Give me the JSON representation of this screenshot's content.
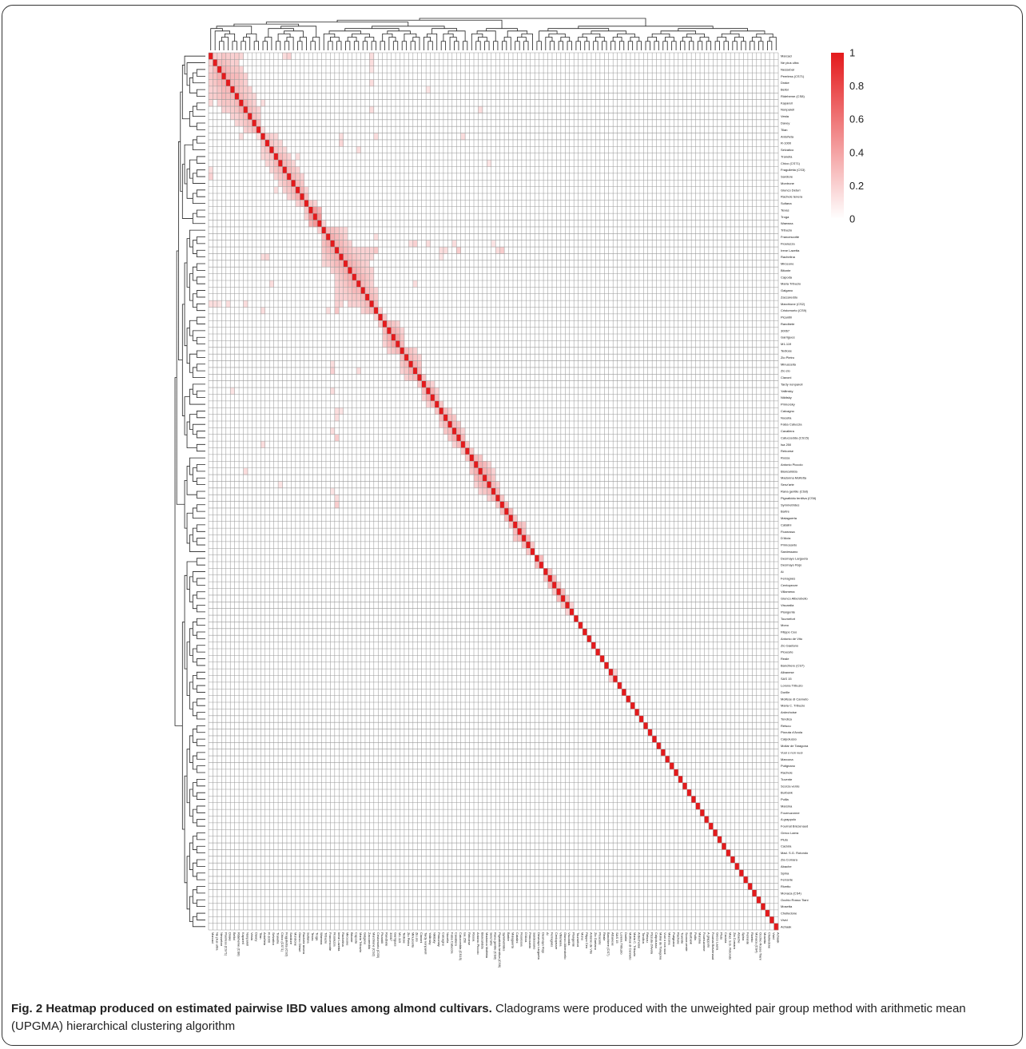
{
  "chart_data": {
    "type": "heatmap",
    "title": "",
    "value_label": "pairwise IBD",
    "labels": [
      "Marcaci",
      "Ne plus ultra",
      "Nessebar",
      "Peerless (CS71)",
      "Drake",
      "Belloi",
      "Rideheme (CS8)",
      "Kapareil",
      "Nonpareil",
      "Vesta",
      "Davey",
      "Tilan",
      "Antoñeta",
      "R-1000",
      "Selvatico",
      "Tranella",
      "Chico (CS71)",
      "Fragulletta (CS3)",
      "Sardiore",
      "Montrone",
      "Giunco Deturi",
      "Rachele tenera",
      "Sultana",
      "Texas",
      "Troga",
      "Waewna",
      "Tribuzio",
      "Francescotte",
      "Fioarazza",
      "Irene Lazetta",
      "Rachelina",
      "Mirceone",
      "Bitonte",
      "Capoda",
      "Maria Tribuzio",
      "Galgano",
      "Zaccareddu",
      "Marchione (CS2)",
      "Cristomorto (CS9)",
      "Picantili",
      "Randbete",
      "30067",
      "Garrigues",
      "M1-119",
      "Tediose",
      "Zio Pietro",
      "Minuscella",
      "Zio zio",
      "Ciavoni",
      "Tardy nonpareil",
      "Yallinsky",
      "Nikitsky",
      "Primorsky",
      "Calcagno",
      "Nocella",
      "Falsa Catuccia",
      "Cavaliera",
      "Catuccedda (CS15)",
      "Isa 250",
      "Reboese",
      "Rossa",
      "Antonio Piccolo",
      "Bianculidda",
      "Madonna Molfetta",
      "Senz'arte",
      "Rana gentile (CS8)",
      "Pignatiddu tenitiva (CS6)",
      "Symmetrides",
      "Bartre",
      "Malaguerta",
      "Catalini",
      "Fioarossa",
      "D'Alcia",
      "Primosanto",
      "Sardessano",
      "Desmayo Largueta",
      "Desmayo Rojo",
      "Ai",
      "Ferragnès",
      "Centopezze",
      "Villamena",
      "Giunco Alberobello",
      "Viscardia",
      "Piangente",
      "Tournefort",
      "Mono",
      "Filippo Ceo",
      "Antonio de Vito",
      "Zio Gaetano",
      "Pioucete",
      "Reale",
      "Banchiere (CS7)",
      "Albanese",
      "SAS 15",
      "Lorena Tribuzio",
      "Dorille",
      "Molfese di Canneto",
      "Maria C. Tribuzio",
      "Ardechoise",
      "Tondica",
      "Retsou",
      "Pizzuta d'Avola",
      "Calpolusso",
      "Mollar de Taragona",
      "Vuoi o non vuoi",
      "Marcona",
      "Putignano",
      "Rachele",
      "Tuvente",
      "Scorza verde",
      "Burbank",
      "Puilla",
      "Marsina",
      "Fournuzonne",
      "A grappolo",
      "Fournat Brézenaud",
      "Greco Laera",
      "Pluto",
      "Caciola",
      "Mad. S.G. Rotondo",
      "Zia Comara",
      "Abache",
      "Spina",
      "Ferrante",
      "Rivetto",
      "Monaca (CS4)",
      "Occhio Rosso Tiani",
      "Mosetta",
      "Chelledone",
      "Vivid",
      "Achaak"
    ],
    "scale": {
      "min": 0,
      "max": 1,
      "ticks": [
        "1",
        "0.8",
        "0.6",
        "0.4",
        "0.2",
        "0"
      ],
      "color_low": "#ffffff",
      "color_high": "#e41a1c"
    },
    "diagonal": 1,
    "values_upper": [
      [
        0,
        1,
        0.22
      ],
      [
        0,
        2,
        0.2
      ],
      [
        0,
        3,
        0.25
      ],
      [
        0,
        4,
        0.22
      ],
      [
        0,
        5,
        0.2
      ],
      [
        0,
        6,
        0.22
      ],
      [
        0,
        7,
        0.18
      ],
      [
        0,
        17,
        0.15
      ],
      [
        0,
        18,
        0.2
      ],
      [
        0,
        37,
        0.15
      ],
      [
        1,
        2,
        0.3
      ],
      [
        1,
        3,
        0.28
      ],
      [
        1,
        4,
        0.25
      ],
      [
        1,
        5,
        0.2
      ],
      [
        1,
        6,
        0.22
      ],
      [
        1,
        37,
        0.15
      ],
      [
        2,
        3,
        0.35
      ],
      [
        2,
        4,
        0.3
      ],
      [
        2,
        5,
        0.25
      ],
      [
        2,
        6,
        0.25
      ],
      [
        2,
        7,
        0.2
      ],
      [
        2,
        37,
        0.12
      ],
      [
        3,
        4,
        0.35
      ],
      [
        3,
        5,
        0.3
      ],
      [
        3,
        6,
        0.3
      ],
      [
        3,
        7,
        0.25
      ],
      [
        3,
        8,
        0.2
      ],
      [
        4,
        5,
        0.3
      ],
      [
        4,
        6,
        0.28
      ],
      [
        4,
        7,
        0.25
      ],
      [
        4,
        8,
        0.2
      ],
      [
        4,
        37,
        0.15
      ],
      [
        5,
        6,
        0.3
      ],
      [
        5,
        7,
        0.25
      ],
      [
        5,
        8,
        0.22
      ],
      [
        5,
        9,
        0.2
      ],
      [
        5,
        50,
        0.12
      ],
      [
        6,
        7,
        0.3
      ],
      [
        6,
        8,
        0.25
      ],
      [
        6,
        9,
        0.2
      ],
      [
        6,
        10,
        0.18
      ],
      [
        7,
        8,
        0.35
      ],
      [
        7,
        9,
        0.25
      ],
      [
        7,
        10,
        0.2
      ],
      [
        7,
        12,
        0.15
      ],
      [
        8,
        9,
        0.3
      ],
      [
        8,
        10,
        0.25
      ],
      [
        8,
        11,
        0.2
      ],
      [
        8,
        37,
        0.15
      ],
      [
        8,
        62,
        0.15
      ],
      [
        9,
        10,
        0.28
      ],
      [
        9,
        11,
        0.22
      ],
      [
        10,
        11,
        0.3
      ],
      [
        11,
        12,
        0.15
      ],
      [
        12,
        13,
        0.25
      ],
      [
        12,
        14,
        0.2
      ],
      [
        12,
        15,
        0.18
      ],
      [
        12,
        30,
        0.15
      ],
      [
        12,
        38,
        0.15
      ],
      [
        12,
        58,
        0.15
      ],
      [
        13,
        14,
        0.25
      ],
      [
        13,
        15,
        0.2
      ],
      [
        13,
        16,
        0.18
      ],
      [
        13,
        30,
        0.18
      ],
      [
        14,
        15,
        0.25
      ],
      [
        14,
        16,
        0.2
      ],
      [
        14,
        17,
        0.18
      ],
      [
        14,
        34,
        0.15
      ],
      [
        15,
        16,
        0.3
      ],
      [
        15,
        17,
        0.25
      ],
      [
        15,
        18,
        0.2
      ],
      [
        15,
        20,
        0.15
      ],
      [
        16,
        17,
        0.3
      ],
      [
        16,
        18,
        0.25
      ],
      [
        16,
        19,
        0.18
      ],
      [
        16,
        64,
        0.12
      ],
      [
        17,
        18,
        0.3
      ],
      [
        17,
        19,
        0.25
      ],
      [
        17,
        20,
        0.2
      ],
      [
        18,
        19,
        0.3
      ],
      [
        18,
        20,
        0.25
      ],
      [
        18,
        21,
        0.2
      ],
      [
        19,
        20,
        0.3
      ],
      [
        19,
        21,
        0.25
      ],
      [
        20,
        21,
        0.35
      ],
      [
        20,
        22,
        0.2
      ],
      [
        21,
        22,
        0.3
      ],
      [
        22,
        23,
        0.25
      ],
      [
        22,
        24,
        0.2
      ],
      [
        23,
        24,
        0.45
      ],
      [
        23,
        25,
        0.35
      ],
      [
        24,
        25,
        0.45
      ],
      [
        25,
        26,
        0.2
      ],
      [
        26,
        27,
        0.3
      ],
      [
        26,
        28,
        0.28
      ],
      [
        26,
        29,
        0.25
      ],
      [
        26,
        30,
        0.2
      ],
      [
        26,
        31,
        0.18
      ],
      [
        27,
        28,
        0.35
      ],
      [
        27,
        29,
        0.3
      ],
      [
        27,
        30,
        0.25
      ],
      [
        27,
        31,
        0.2
      ],
      [
        27,
        38,
        0.15
      ],
      [
        28,
        29,
        0.35
      ],
      [
        28,
        30,
        0.3
      ],
      [
        28,
        31,
        0.25
      ],
      [
        28,
        32,
        0.2
      ],
      [
        28,
        46,
        0.15
      ],
      [
        28,
        47,
        0.2
      ],
      [
        28,
        50,
        0.15
      ],
      [
        28,
        56,
        0.15
      ],
      [
        28,
        65,
        0.12
      ],
      [
        29,
        30,
        0.35
      ],
      [
        29,
        31,
        0.3
      ],
      [
        29,
        32,
        0.25
      ],
      [
        29,
        33,
        0.2
      ],
      [
        29,
        34,
        0.2
      ],
      [
        29,
        35,
        0.2
      ],
      [
        29,
        36,
        0.2
      ],
      [
        29,
        37,
        0.2
      ],
      [
        29,
        38,
        0.25
      ],
      [
        29,
        53,
        0.15
      ],
      [
        29,
        54,
        0.15
      ],
      [
        29,
        57,
        0.22
      ],
      [
        29,
        66,
        0.15
      ],
      [
        29,
        67,
        0.22
      ],
      [
        30,
        31,
        0.35
      ],
      [
        30,
        32,
        0.3
      ],
      [
        30,
        33,
        0.25
      ],
      [
        30,
        34,
        0.22
      ],
      [
        30,
        35,
        0.2
      ],
      [
        30,
        36,
        0.2
      ],
      [
        30,
        37,
        0.18
      ],
      [
        30,
        53,
        0.12
      ],
      [
        31,
        32,
        0.35
      ],
      [
        31,
        33,
        0.3
      ],
      [
        31,
        34,
        0.25
      ],
      [
        31,
        35,
        0.22
      ],
      [
        31,
        36,
        0.2
      ],
      [
        32,
        33,
        0.35
      ],
      [
        32,
        34,
        0.3
      ],
      [
        32,
        35,
        0.25
      ],
      [
        32,
        36,
        0.22
      ],
      [
        32,
        37,
        0.2
      ],
      [
        33,
        34,
        0.35
      ],
      [
        33,
        35,
        0.3
      ],
      [
        33,
        36,
        0.25
      ],
      [
        33,
        37,
        0.2
      ],
      [
        34,
        35,
        0.3
      ],
      [
        34,
        36,
        0.25
      ],
      [
        34,
        37,
        0.2
      ],
      [
        34,
        47,
        0.15
      ],
      [
        35,
        36,
        0.3
      ],
      [
        35,
        37,
        0.25
      ],
      [
        35,
        38,
        0.2
      ],
      [
        36,
        37,
        0.3
      ],
      [
        36,
        38,
        0.25
      ],
      [
        37,
        38,
        0.3
      ],
      [
        38,
        39,
        0.2
      ],
      [
        39,
        40,
        0.25
      ],
      [
        40,
        41,
        0.3
      ],
      [
        40,
        42,
        0.25
      ],
      [
        40,
        43,
        0.2
      ],
      [
        41,
        42,
        0.35
      ],
      [
        41,
        43,
        0.3
      ],
      [
        41,
        44,
        0.2
      ],
      [
        42,
        43,
        0.4
      ],
      [
        42,
        44,
        0.25
      ],
      [
        43,
        44,
        0.3
      ],
      [
        44,
        45,
        0.3
      ],
      [
        44,
        46,
        0.25
      ],
      [
        44,
        47,
        0.2
      ],
      [
        45,
        46,
        0.3
      ],
      [
        45,
        47,
        0.25
      ],
      [
        45,
        48,
        0.2
      ],
      [
        46,
        47,
        0.35
      ],
      [
        46,
        48,
        0.25
      ],
      [
        47,
        48,
        0.3
      ],
      [
        48,
        49,
        0.25
      ],
      [
        49,
        50,
        0.3
      ],
      [
        49,
        51,
        0.2
      ],
      [
        50,
        51,
        0.35
      ],
      [
        50,
        52,
        0.2
      ],
      [
        51,
        52,
        0.3
      ],
      [
        52,
        53,
        0.25
      ],
      [
        53,
        54,
        0.3
      ],
      [
        53,
        55,
        0.2
      ],
      [
        54,
        55,
        0.3
      ],
      [
        54,
        56,
        0.25
      ],
      [
        55,
        56,
        0.3
      ],
      [
        55,
        57,
        0.25
      ],
      [
        56,
        57,
        0.35
      ],
      [
        56,
        58,
        0.2
      ],
      [
        57,
        58,
        0.3
      ],
      [
        58,
        59,
        0.25
      ],
      [
        59,
        60,
        0.25
      ],
      [
        60,
        61,
        0.3
      ],
      [
        60,
        62,
        0.25
      ],
      [
        61,
        62,
        0.35
      ],
      [
        61,
        63,
        0.3
      ],
      [
        61,
        64,
        0.2
      ],
      [
        62,
        63,
        0.35
      ],
      [
        62,
        64,
        0.3
      ],
      [
        62,
        65,
        0.2
      ],
      [
        63,
        64,
        0.35
      ],
      [
        63,
        65,
        0.25
      ],
      [
        64,
        65,
        0.3
      ],
      [
        64,
        66,
        0.2
      ],
      [
        65,
        66,
        0.3
      ],
      [
        66,
        67,
        0.25
      ],
      [
        67,
        68,
        0.3
      ],
      [
        68,
        69,
        0.3
      ],
      [
        69,
        70,
        0.25
      ],
      [
        70,
        71,
        0.3
      ],
      [
        70,
        72,
        0.25
      ],
      [
        71,
        72,
        0.3
      ],
      [
        72,
        73,
        0.3
      ],
      [
        73,
        74,
        0.25
      ],
      [
        75,
        76,
        0.3
      ],
      [
        77,
        78,
        0.25
      ],
      [
        78,
        79,
        0.3
      ],
      [
        79,
        80,
        0.25
      ],
      [
        80,
        81,
        0.3
      ],
      [
        81,
        82,
        0.25
      ],
      [
        82,
        83,
        0.2
      ],
      [
        92,
        93,
        0.2
      ]
    ]
  },
  "caption": {
    "label": "Fig. 2 Heatmap produced on estimated pairwise IBD values among almond cultivars.",
    "text": " Cladograms were produced with the unweighted pair group method with arithmetic mean (UPGMA) hierarchical clustering algorithm"
  }
}
